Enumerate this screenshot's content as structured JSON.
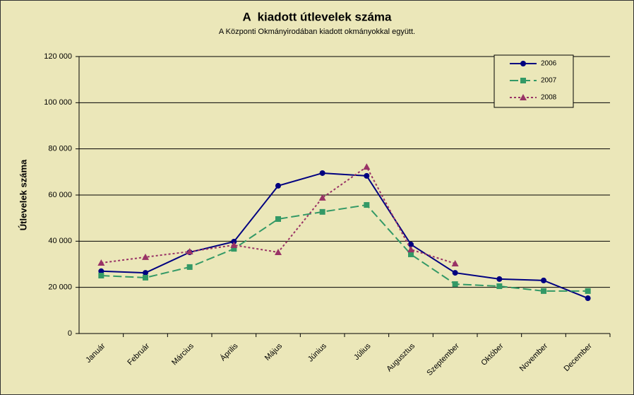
{
  "chart_data": {
    "type": "line",
    "title": "A  kiadott útlevelek száma",
    "subtitle": "A Központi Okmányirodában kiadott okmányokkal együtt.",
    "y_label": "Útlevelek száma",
    "categories": [
      "Január",
      "Február",
      "Március",
      "Április",
      "Május",
      "Június",
      "Július",
      "Augusztus",
      "Szeptember",
      "Október",
      "November",
      "December"
    ],
    "series": [
      {
        "name": "2006",
        "color": "#000080",
        "line_style": "solid",
        "marker": "diamond",
        "values": [
          27000,
          26300,
          35200,
          39800,
          64000,
          69500,
          68300,
          38600,
          26300,
          23600,
          23000,
          15300
        ]
      },
      {
        "name": "2007",
        "color": "#339966",
        "line_style": "dashed",
        "marker": "square",
        "values": [
          25100,
          24200,
          28800,
          36700,
          49600,
          52700,
          55700,
          34300,
          21400,
          20500,
          18400,
          18400
        ]
      },
      {
        "name": "2008",
        "color": "#993366",
        "line_style": "dotted",
        "marker": "triangle",
        "values": [
          30600,
          33100,
          35500,
          38300,
          35200,
          58800,
          72200,
          36400,
          30300,
          null,
          null,
          null
        ]
      }
    ],
    "ylim": [
      0,
      120000
    ],
    "yticks": [
      0,
      {
        "value": 20000,
        "label": "20 000"
      },
      {
        "value": 40000,
        "label": "40 000"
      },
      {
        "value": 60000,
        "label": "60 000"
      },
      {
        "value": 80000,
        "label": "80 000"
      },
      {
        "value": 100000,
        "label": "100 000"
      },
      {
        "value": 120000,
        "label": "120 000"
      }
    ],
    "grid": true,
    "legend": "upper right"
  }
}
